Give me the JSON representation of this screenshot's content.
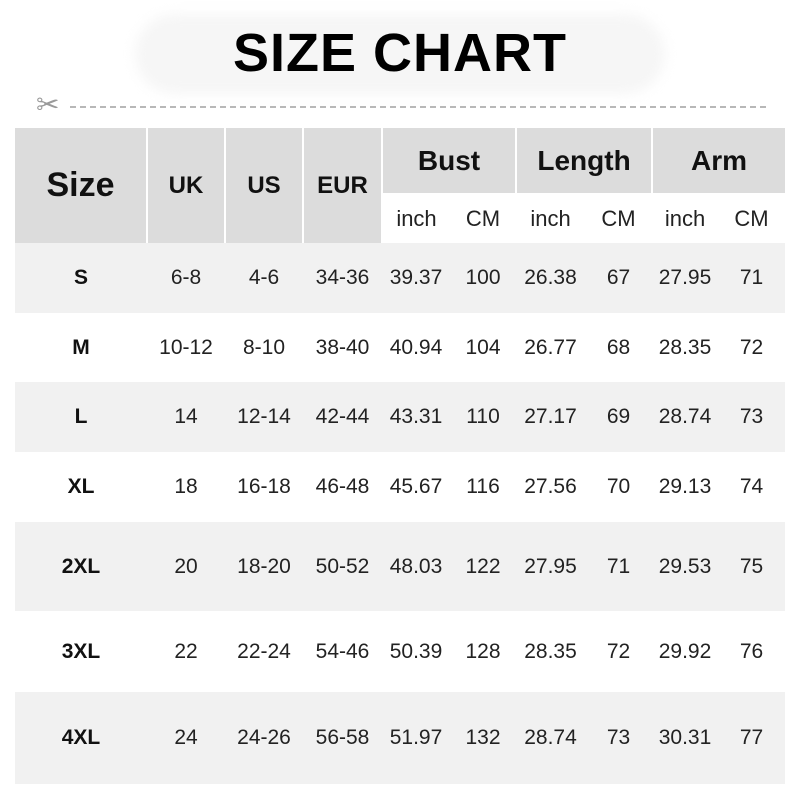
{
  "title": "SIZE CHART",
  "icons": {
    "cut": "scissors-icon"
  },
  "header": {
    "size": "Size",
    "uk": "UK",
    "us": "US",
    "eur": "EUR",
    "groups": [
      "Bust",
      "Length",
      "Arm"
    ],
    "units": [
      "inch",
      "CM",
      "inch",
      "CM",
      "inch",
      "CM"
    ]
  },
  "rows": [
    [
      "S",
      "6-8",
      "4-6",
      "34-36",
      "39.37",
      "100",
      "26.38",
      "67",
      "27.95",
      "71"
    ],
    [
      "M",
      "10-12",
      "8-10",
      "38-40",
      "40.94",
      "104",
      "26.77",
      "68",
      "28.35",
      "72"
    ],
    [
      "L",
      "14",
      "12-14",
      "42-44",
      "43.31",
      "110",
      "27.17",
      "69",
      "28.74",
      "73"
    ],
    [
      "XL",
      "18",
      "16-18",
      "46-48",
      "45.67",
      "116",
      "27.56",
      "70",
      "29.13",
      "74"
    ],
    [
      "2XL",
      "20",
      "18-20",
      "50-52",
      "48.03",
      "122",
      "27.95",
      "71",
      "29.53",
      "75"
    ],
    [
      "3XL",
      "22",
      "22-24",
      "54-46",
      "50.39",
      "128",
      "28.35",
      "72",
      "29.92",
      "76"
    ],
    [
      "4XL",
      "24",
      "24-26",
      "56-58",
      "51.97",
      "132",
      "28.74",
      "73",
      "30.31",
      "77"
    ]
  ]
}
